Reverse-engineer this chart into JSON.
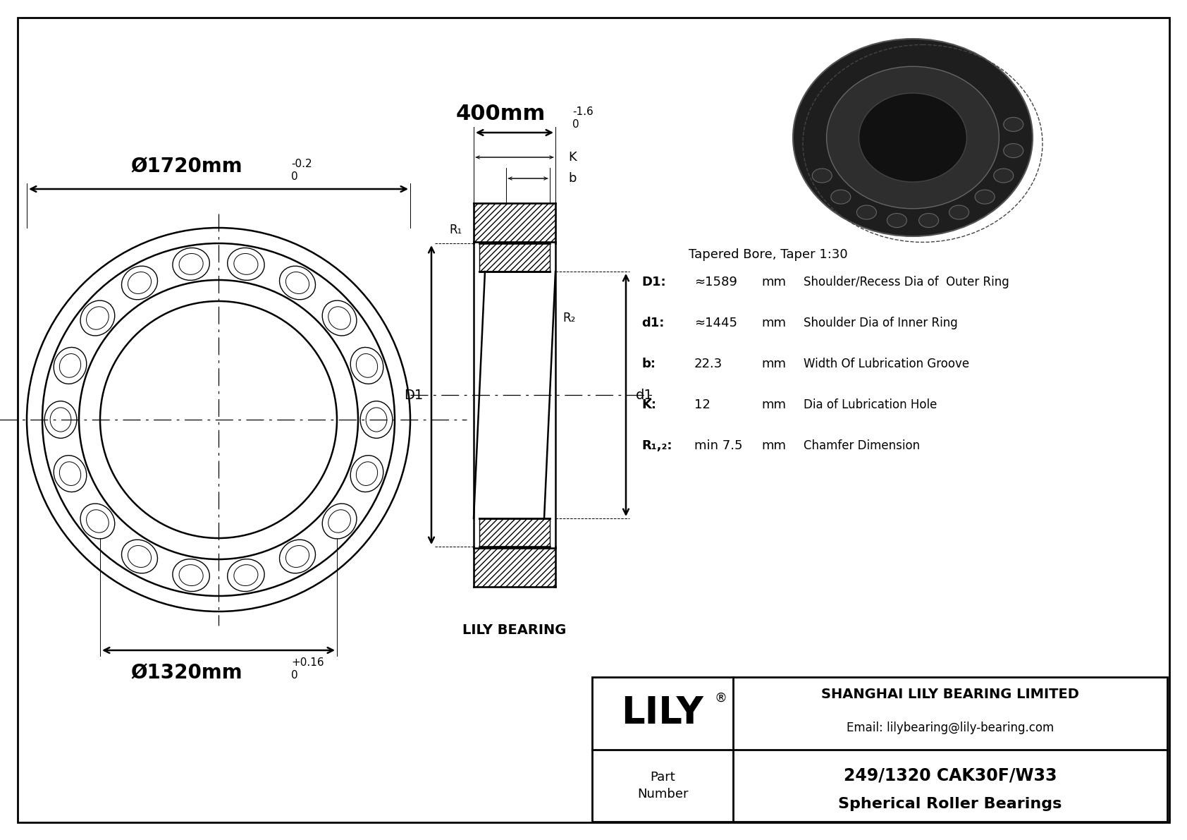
{
  "bg_color": "#ffffff",
  "line_color": "#000000",
  "outer_dia_label": "Ø1720mm",
  "outer_dia_tol_top": "0",
  "outer_dia_tol_bot": "-0.2",
  "inner_dia_label": "Ø1320mm",
  "inner_dia_tol_top": "+0.16",
  "inner_dia_tol_bot": "0",
  "width_label": "400mm",
  "width_tol_top": "0",
  "width_tol_bot": "-1.6",
  "spec_title": "Tapered Bore, Taper 1:30",
  "specs": [
    {
      "param": "D1:",
      "value": "≈1589",
      "unit": "mm",
      "desc": "Shoulder/Recess Dia of  Outer Ring"
    },
    {
      "param": "d1:",
      "value": "≈1445",
      "unit": "mm",
      "desc": "Shoulder Dia of Inner Ring"
    },
    {
      "param": "b:",
      "value": "22.3",
      "unit": "mm",
      "desc": "Width Of Lubrication Groove"
    },
    {
      "param": "K:",
      "value": "12",
      "unit": "mm",
      "desc": "Dia of Lubrication Hole"
    },
    {
      "param": "R₁,₂:",
      "value": "min 7.5",
      "unit": "mm",
      "desc": "Chamfer Dimension"
    }
  ],
  "lily_bearing_label": "LILY BEARING",
  "company_name": "SHANGHAI LILY BEARING LIMITED",
  "company_email": "Email: lilybearing@lily-bearing.com",
  "part_number": "249/1320 CAK30F/W33",
  "part_type": "Spherical Roller Bearings",
  "yellow_color": "#d4d400",
  "n_rollers": 18
}
